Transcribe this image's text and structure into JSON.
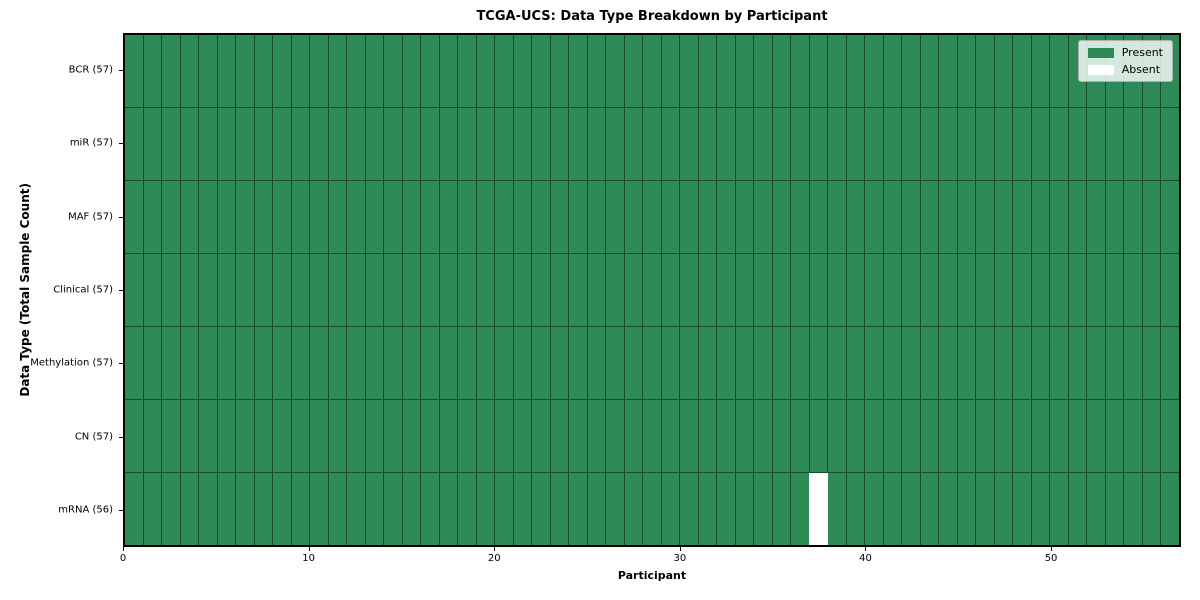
{
  "chart_data": {
    "type": "heatmap",
    "title": "TCGA-UCS: Data Type Breakdown by Participant",
    "xlabel": "Participant",
    "ylabel": "Data Type (Total Sample Count)",
    "x_ticks": [
      0,
      10,
      20,
      30,
      40,
      50
    ],
    "x_range": [
      0,
      57
    ],
    "n_participants": 57,
    "grid": true,
    "legend_position": "upper right",
    "rows": [
      {
        "label": "BCR (57)",
        "data_type": "BCR",
        "total_samples": 57,
        "absent_participants": []
      },
      {
        "label": "miR (57)",
        "data_type": "miR",
        "total_samples": 57,
        "absent_participants": []
      },
      {
        "label": "MAF (57)",
        "data_type": "MAF",
        "total_samples": 57,
        "absent_participants": []
      },
      {
        "label": "Clinical (57)",
        "data_type": "Clinical",
        "total_samples": 57,
        "absent_participants": []
      },
      {
        "label": "Methylation (57)",
        "data_type": "Methylation",
        "total_samples": 57,
        "absent_participants": []
      },
      {
        "label": "CN (57)",
        "data_type": "CN",
        "total_samples": 57,
        "absent_participants": []
      },
      {
        "label": "mRNA (56)",
        "data_type": "mRNA",
        "total_samples": 56,
        "absent_participants": [
          37
        ]
      }
    ],
    "legend": [
      {
        "label": "Present",
        "color": "#2e8b57"
      },
      {
        "label": "Absent",
        "color": "#ffffff"
      }
    ],
    "colors": {
      "present": "#2e8b57",
      "absent": "#ffffff",
      "gridline": "#1b4a2e",
      "frame": "#000000",
      "background": "#ffffff"
    }
  }
}
